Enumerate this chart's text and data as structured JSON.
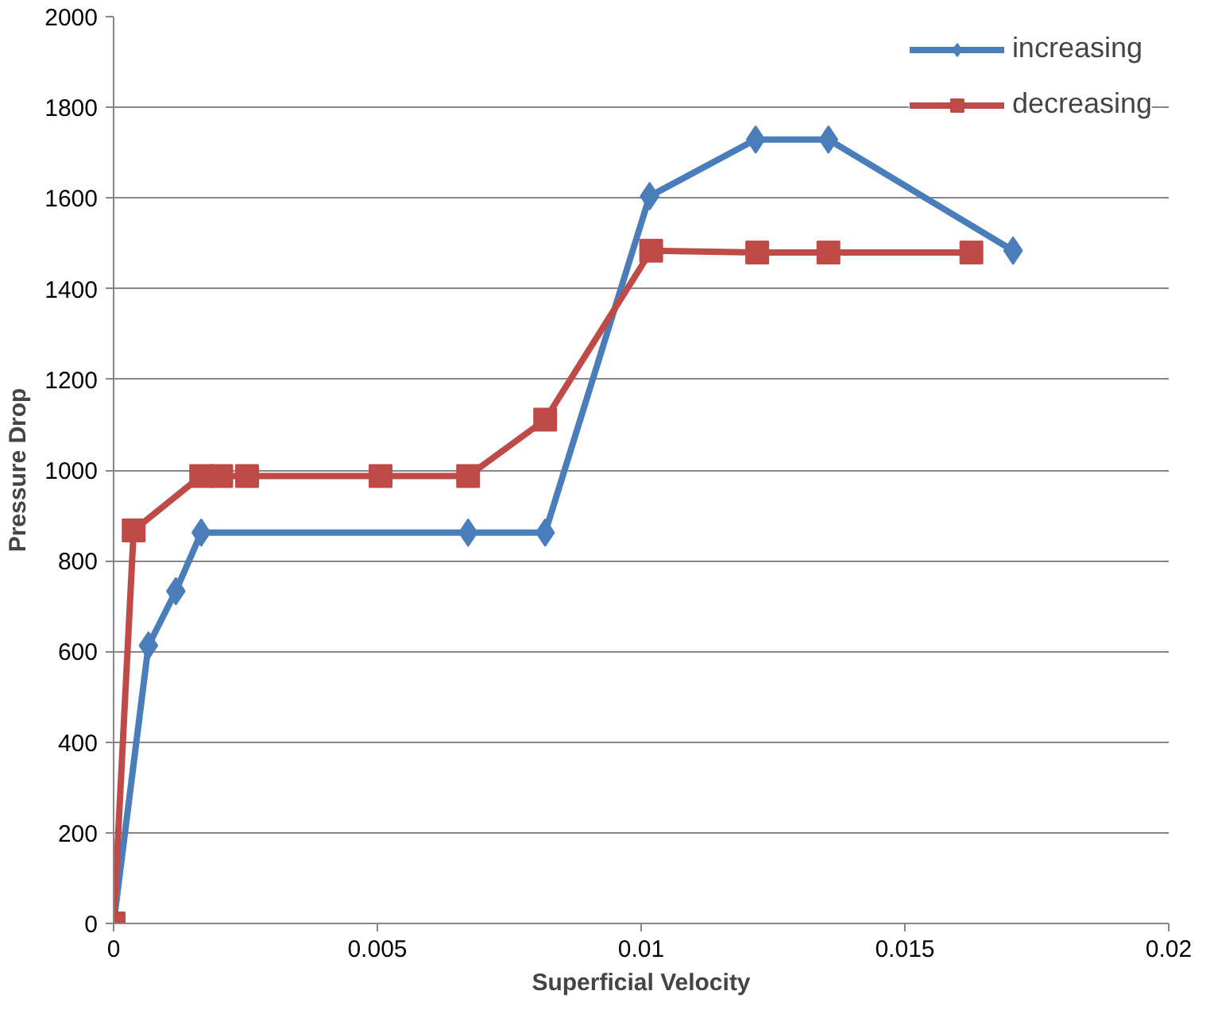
{
  "chart_data": {
    "type": "line",
    "xlabel": "Superficial Velocity",
    "ylabel": "Pressure Drop",
    "xlim": [
      0,
      0.02
    ],
    "xticks": [
      0,
      0.005,
      0.01,
      0.015,
      0.02
    ],
    "ylim": [
      0,
      2000
    ],
    "yticks": [
      0,
      200,
      400,
      600,
      800,
      1000,
      1200,
      1400,
      1600,
      1800,
      2000
    ],
    "grid": "y",
    "legend": "top right",
    "series": [
      {
        "name": "increasing",
        "color": "#4a7ebb",
        "marker": "diamond",
        "x": [
          0,
          0.00066,
          0.00118,
          0.00166,
          0.00672,
          0.00818,
          0.01016,
          0.01217,
          0.01355,
          0.01705
        ],
        "values": [
          0,
          613,
          733,
          862,
          862,
          862,
          1604,
          1729,
          1729,
          1484
        ]
      },
      {
        "name": "decreasing",
        "color": "#be4b48",
        "marker": "square",
        "x": [
          0,
          0.00038,
          0.00166,
          0.00204,
          0.00253,
          0.00506,
          0.00672,
          0.00818,
          0.01019,
          0.0122,
          0.01355,
          0.01626
        ],
        "values": [
          0,
          867,
          987,
          987,
          987,
          987,
          987,
          1111,
          1484,
          1480,
          1480,
          1480
        ]
      }
    ]
  }
}
